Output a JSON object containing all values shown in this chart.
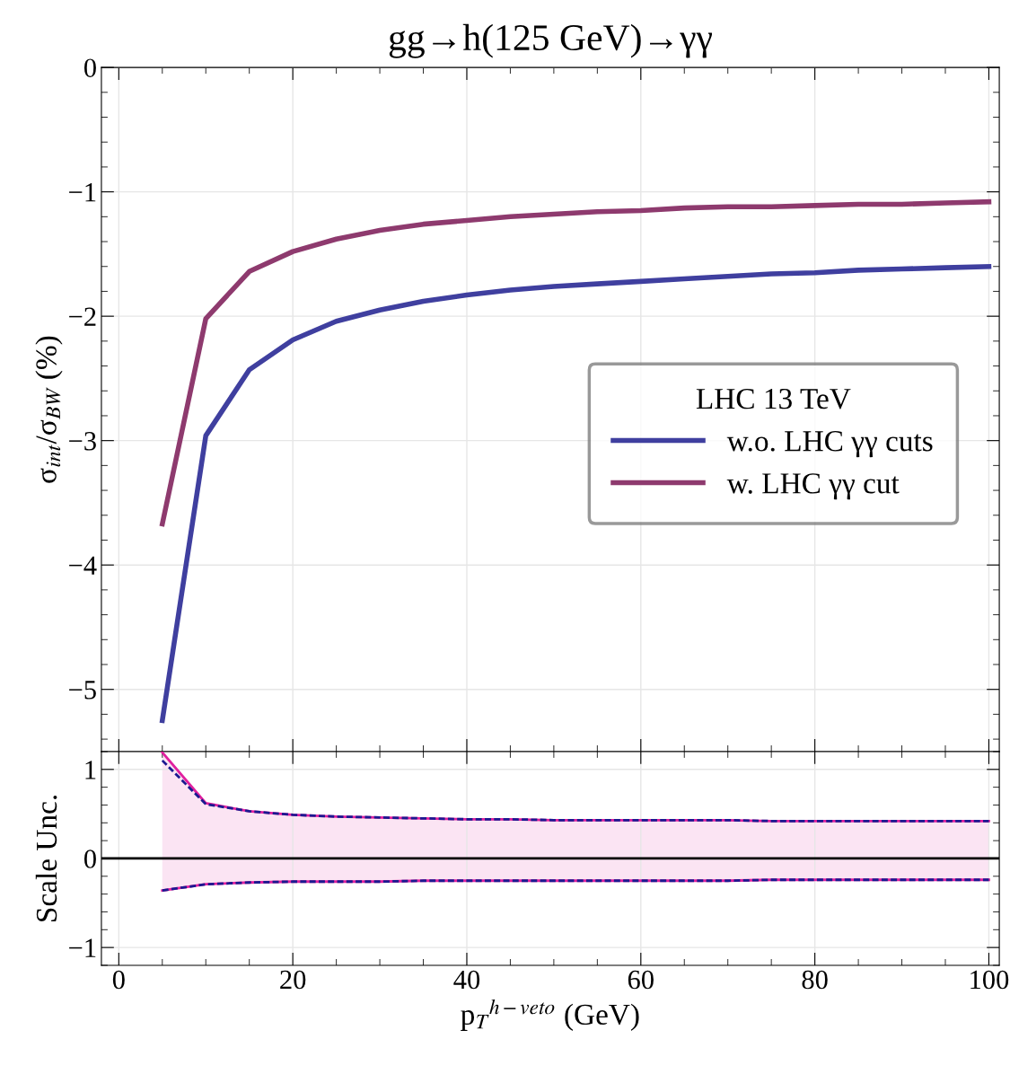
{
  "chart_data": [
    {
      "type": "line",
      "title": "gg→h(125 GeV)→γγ",
      "ylabel": "σ$_{int}$/σ$_{BW}$ (%)",
      "legend_title": "LHC 13 TeV",
      "legend": "right",
      "grid": true,
      "tick_labels": "y",
      "line_style": "solid",
      "xlim": [
        -2,
        101.2
      ],
      "xticks": [
        0,
        20,
        40,
        60,
        80,
        100
      ],
      "ylim": [
        -5.5,
        0
      ],
      "yticks": [
        0,
        {
          "value": -1,
          "label": "−1"
        },
        {
          "value": -2,
          "label": "−2"
        },
        {
          "value": -3,
          "label": "−3"
        },
        {
          "value": -4,
          "label": "−4"
        },
        {
          "value": -5,
          "label": "−5"
        }
      ],
      "x": [
        5,
        10,
        15,
        20,
        25,
        30,
        35,
        40,
        45,
        50,
        55,
        60,
        65,
        70,
        75,
        80,
        85,
        90,
        95,
        100
      ],
      "series": [
        {
          "name": "w.o. LHC γγ cuts",
          "color": "#3f3f9f",
          "values": [
            -5.25,
            -2.96,
            -2.43,
            -2.19,
            -2.04,
            -1.95,
            -1.88,
            -1.83,
            -1.79,
            -1.76,
            -1.74,
            -1.72,
            -1.7,
            -1.68,
            -1.66,
            -1.65,
            -1.63,
            -1.62,
            -1.61,
            -1.6
          ]
        },
        {
          "name": "w. LHC γγ cut",
          "color": "#8e3a6e",
          "values": [
            -3.67,
            -2.02,
            -1.64,
            -1.48,
            -1.38,
            -1.31,
            -1.26,
            -1.23,
            -1.2,
            -1.18,
            -1.16,
            -1.15,
            -1.13,
            -1.12,
            -1.12,
            -1.11,
            -1.1,
            -1.1,
            -1.09,
            -1.08
          ]
        }
      ]
    },
    {
      "type": "line",
      "xlabel": "p$_{T}$$^{h−veto}$ (GeV)",
      "ylabel": "Scale Unc.",
      "grid": true,
      "xlim": [
        -2,
        101.2
      ],
      "xticks": [
        0,
        20,
        40,
        60,
        80,
        100
      ],
      "ylim": [
        -1.2,
        1.2
      ],
      "yticks": [
        {
          "value": -1,
          "label": "−1"
        },
        0,
        1
      ],
      "x": [
        5,
        10,
        15,
        20,
        25,
        30,
        35,
        40,
        45,
        50,
        55,
        60,
        65,
        70,
        75,
        80,
        85,
        90,
        95,
        100
      ],
      "ref_lines": [
        {
          "axis": "y",
          "value": 0,
          "color": "#000000",
          "line_style": "solid"
        }
      ],
      "series": [
        {
          "color": "#e0209f",
          "line_style": "solid",
          "values": [
            1.19,
            0.62,
            0.53,
            0.49,
            0.47,
            0.46,
            0.45,
            0.44,
            0.44,
            0.43,
            0.43,
            0.43,
            0.43,
            0.43,
            0.42,
            0.42,
            0.42,
            0.42,
            0.42,
            0.42
          ],
          "lower": [
            -0.36,
            -0.29,
            -0.27,
            -0.26,
            -0.26,
            -0.26,
            -0.25,
            -0.25,
            -0.25,
            -0.25,
            -0.25,
            -0.25,
            -0.25,
            -0.25,
            -0.24,
            -0.24,
            -0.24,
            -0.24,
            -0.24,
            -0.24
          ],
          "upper": [
            1.19,
            0.62,
            0.53,
            0.49,
            0.47,
            0.46,
            0.45,
            0.44,
            0.44,
            0.43,
            0.43,
            0.43,
            0.43,
            0.43,
            0.42,
            0.42,
            0.42,
            0.42,
            0.42,
            0.42
          ]
        },
        {
          "color": "#e0209f",
          "line_style": "solid",
          "values": [
            -0.36,
            -0.29,
            -0.27,
            -0.26,
            -0.26,
            -0.26,
            -0.25,
            -0.25,
            -0.25,
            -0.25,
            -0.25,
            -0.25,
            -0.25,
            -0.25,
            -0.24,
            -0.24,
            -0.24,
            -0.24,
            -0.24,
            -0.24
          ]
        },
        {
          "color": "#1a1a90",
          "line_style": "dashed",
          "values": [
            1.1,
            0.61,
            0.53,
            0.49,
            0.47,
            0.46,
            0.45,
            0.44,
            0.44,
            0.43,
            0.43,
            0.43,
            0.43,
            0.43,
            0.42,
            0.42,
            0.42,
            0.42,
            0.42,
            0.42
          ]
        },
        {
          "color": "#1a1a90",
          "line_style": "dashed",
          "values": [
            -0.36,
            -0.29,
            -0.27,
            -0.26,
            -0.26,
            -0.26,
            -0.25,
            -0.25,
            -0.25,
            -0.25,
            -0.25,
            -0.25,
            -0.25,
            -0.25,
            -0.24,
            -0.24,
            -0.24,
            -0.24,
            -0.24,
            -0.24
          ]
        }
      ]
    }
  ]
}
